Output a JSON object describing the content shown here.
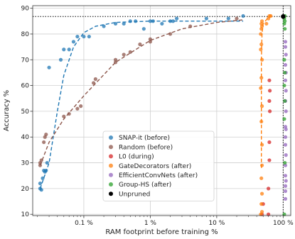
{
  "chart_data": {
    "type": "scatter",
    "xlabel": "RAM footprint before training %",
    "ylabel": "Accuracy %",
    "x_scale": "log",
    "xlim": [
      0.017,
      130
    ],
    "ylim": [
      9.5,
      91
    ],
    "x_ticks": [
      {
        "value": 0.1,
        "label": "0.1 %"
      },
      {
        "value": 1,
        "label": "1 %"
      },
      {
        "value": 10,
        "label": "10 %"
      },
      {
        "value": 100,
        "label": "100 %"
      }
    ],
    "y_ticks": [
      10,
      20,
      30,
      40,
      50,
      60,
      70,
      80,
      90
    ],
    "grid": true,
    "legend_position": "lower-center",
    "reference_lines": {
      "unpruned_accuracy": 86.8,
      "unpruned_ram": 100
    },
    "series": [
      {
        "name": "SNAP-it (before)",
        "color": "#1f77b4",
        "points": [
          [
            0.022,
            20
          ],
          [
            0.022,
            22
          ],
          [
            0.023,
            19.5
          ],
          [
            0.024,
            24
          ],
          [
            0.025,
            27
          ],
          [
            0.026,
            26.5
          ],
          [
            0.027,
            27
          ],
          [
            0.028,
            30
          ],
          [
            0.03,
            67
          ],
          [
            0.045,
            70
          ],
          [
            0.05,
            74
          ],
          [
            0.06,
            74
          ],
          [
            0.07,
            77
          ],
          [
            0.08,
            79
          ],
          [
            0.1,
            79
          ],
          [
            0.12,
            79
          ],
          [
            0.2,
            83
          ],
          [
            0.3,
            84
          ],
          [
            0.4,
            84
          ],
          [
            0.5,
            85
          ],
          [
            0.6,
            85
          ],
          [
            0.8,
            82
          ],
          [
            1,
            85
          ],
          [
            1.1,
            85
          ],
          [
            1.5,
            84
          ],
          [
            2,
            85
          ],
          [
            2.2,
            85
          ],
          [
            2.5,
            86
          ],
          [
            7,
            86
          ],
          [
            15,
            86
          ],
          [
            25,
            87
          ]
        ],
        "trend": [
          [
            0.022,
            20
          ],
          [
            0.03,
            30
          ],
          [
            0.04,
            50
          ],
          [
            0.05,
            64
          ],
          [
            0.07,
            75
          ],
          [
            0.1,
            80.5
          ],
          [
            0.15,
            83
          ],
          [
            0.3,
            84.5
          ],
          [
            1,
            85
          ],
          [
            5,
            85
          ],
          [
            25,
            85
          ]
        ]
      },
      {
        "name": "Random (before)",
        "color": "#8c564b",
        "points": [
          [
            0.022,
            29
          ],
          [
            0.022,
            30
          ],
          [
            0.023,
            31
          ],
          [
            0.025,
            38
          ],
          [
            0.026,
            40
          ],
          [
            0.027,
            41
          ],
          [
            0.05,
            48
          ],
          [
            0.06,
            49
          ],
          [
            0.08,
            51
          ],
          [
            0.09,
            52
          ],
          [
            0.14,
            61
          ],
          [
            0.15,
            62.5
          ],
          [
            0.3,
            69
          ],
          [
            0.3,
            70
          ],
          [
            0.4,
            72
          ],
          [
            0.5,
            73
          ],
          [
            0.7,
            76
          ],
          [
            1,
            77
          ],
          [
            1,
            78
          ],
          [
            2,
            80
          ],
          [
            4,
            83
          ],
          [
            20,
            86
          ]
        ],
        "trend": [
          [
            0.022,
            29
          ],
          [
            0.03,
            38
          ],
          [
            0.05,
            47
          ],
          [
            0.1,
            56
          ],
          [
            0.3,
            69
          ],
          [
            1,
            77.5
          ],
          [
            3,
            82
          ],
          [
            10,
            84.5
          ],
          [
            25,
            85.5
          ]
        ]
      },
      {
        "name": "L0 (during)",
        "color": "#d62728",
        "points": [
          [
            48,
            10
          ],
          [
            50,
            14
          ],
          [
            60,
            10
          ],
          [
            60,
            20
          ],
          [
            62,
            31
          ],
          [
            62,
            38
          ],
          [
            63,
            50
          ],
          [
            62,
            54
          ],
          [
            63,
            58
          ],
          [
            62,
            62
          ]
        ]
      },
      {
        "name": "GateDecorators (after)",
        "color": "#ff7f0e",
        "points": [
          [
            46,
            10
          ],
          [
            48,
            11
          ],
          [
            47,
            14
          ],
          [
            48,
            18
          ],
          [
            47,
            24
          ],
          [
            48,
            29
          ],
          [
            48,
            37
          ],
          [
            47,
            46
          ],
          [
            48,
            52
          ],
          [
            46,
            59
          ],
          [
            47,
            63
          ],
          [
            48,
            70
          ],
          [
            46,
            74
          ],
          [
            47,
            76
          ],
          [
            46,
            80
          ],
          [
            47,
            82
          ],
          [
            48,
            83
          ],
          [
            47,
            84
          ],
          [
            48,
            85
          ],
          [
            56,
            84
          ],
          [
            60,
            86
          ],
          [
            62,
            87
          ],
          [
            65,
            87
          ]
        ],
        "trend": [
          [
            47,
            28
          ],
          [
            47,
            40
          ],
          [
            47,
            55
          ],
          [
            47,
            70
          ],
          [
            48,
            80
          ],
          [
            50,
            84
          ],
          [
            58,
            86
          ],
          [
            66,
            87
          ]
        ]
      },
      {
        "name": "EfficientConvNets (after)",
        "color": "#9467bd",
        "points": [
          [
            108,
            16
          ],
          [
            108,
            19
          ],
          [
            108,
            21
          ],
          [
            110,
            23
          ],
          [
            108,
            25
          ],
          [
            108,
            29
          ],
          [
            110,
            33
          ],
          [
            108,
            37
          ],
          [
            108,
            40
          ],
          [
            110,
            43
          ],
          [
            108,
            44
          ],
          [
            110,
            50
          ],
          [
            108,
            54
          ],
          [
            110,
            58
          ],
          [
            108,
            62
          ],
          [
            110,
            65
          ],
          [
            108,
            68
          ],
          [
            110,
            72
          ],
          [
            108,
            75
          ],
          [
            108,
            77
          ]
        ]
      },
      {
        "name": "Group-HS (after)",
        "color": "#2ca02c",
        "points": [
          [
            104,
            10
          ],
          [
            106,
            30
          ],
          [
            104,
            47
          ],
          [
            106,
            54
          ],
          [
            104,
            60
          ],
          [
            106,
            65
          ],
          [
            104,
            70
          ],
          [
            106,
            82
          ],
          [
            104,
            84
          ],
          [
            106,
            85
          ],
          [
            104,
            86
          ],
          [
            106,
            87
          ]
        ]
      },
      {
        "name": "Unpruned",
        "color": "#000000",
        "points": [
          [
            100,
            86.8
          ]
        ]
      }
    ]
  }
}
